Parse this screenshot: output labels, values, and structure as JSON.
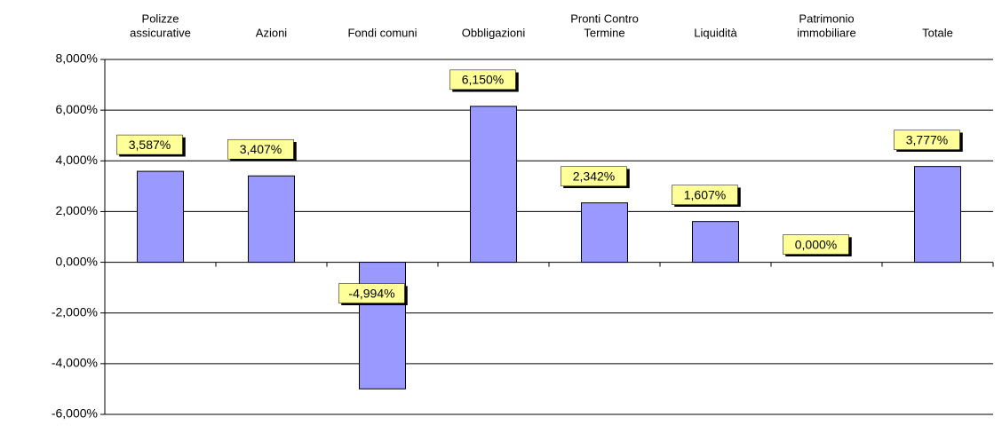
{
  "chart_data": {
    "type": "bar",
    "categories": [
      [
        "Polizze",
        "assicurative"
      ],
      [
        "Azioni"
      ],
      [
        "Fondi comuni"
      ],
      [
        "Obbligazioni"
      ],
      [
        "Pronti Contro",
        "Termine"
      ],
      [
        "Liquidità"
      ],
      [
        "Patrimonio",
        "immobiliare"
      ],
      [
        "Totale"
      ]
    ],
    "values": [
      3.587,
      3.407,
      -4.994,
      6.15,
      2.342,
      1.607,
      0,
      3.777
    ],
    "value_labels": [
      "3,587%",
      "3,407%",
      "-4,994%",
      "6,150%",
      "2,342%",
      "1,607%",
      "0,000%",
      "3,777%"
    ],
    "color": "#9999ff",
    "ylim": [
      -6,
      8
    ],
    "yticks": [
      {
        "value": -6,
        "label": "-6,000%"
      },
      {
        "value": -4,
        "label": "-4,000%"
      },
      {
        "value": -2,
        "label": "-2,000%"
      },
      {
        "value": 0,
        "label": "0,000%"
      },
      {
        "value": 2,
        "label": "2,000%"
      },
      {
        "value": 4,
        "label": "4,000%"
      },
      {
        "value": 6,
        "label": "6,000%"
      },
      {
        "value": 8,
        "label": "8,000%"
      }
    ],
    "grid": true
  }
}
